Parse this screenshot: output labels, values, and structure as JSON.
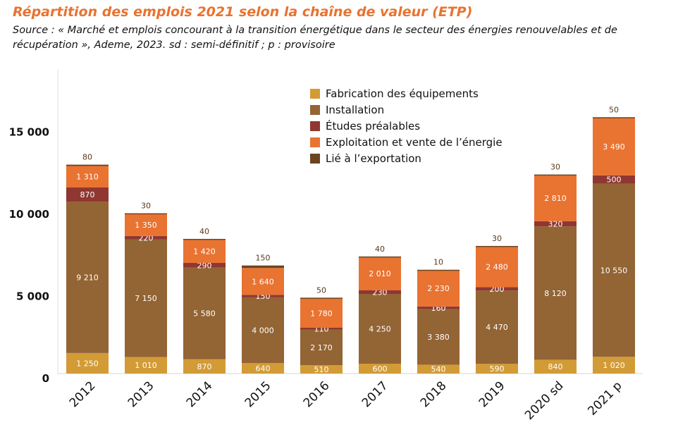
{
  "chart_data": {
    "type": "bar",
    "stacked": true,
    "title": "Répartition des emplois 2021 selon la chaîne de valeur (ETP)",
    "subtitle": "Source : « Marché et emplois concourant à la transition énergétique dans le secteur des énergies renouvelables et de récupération », Ademe, 2023. sd : semi-définitif ; p : provisoire",
    "categories": [
      "2012",
      "2013",
      "2014",
      "2015",
      "2016",
      "2017",
      "2018",
      "2019",
      "2020 sd",
      "2021 p"
    ],
    "ylim": [
      0,
      18500
    ],
    "yticks": [
      0,
      5000,
      10000,
      15000
    ],
    "ytick_labels": [
      "0",
      "5 000",
      "10 000",
      "15 000"
    ],
    "grid": false,
    "legend_position": "top-right",
    "series": [
      {
        "name": "Fabrication des équipements",
        "color": "#D39B36",
        "values": [
          1250,
          1010,
          870,
          640,
          510,
          600,
          540,
          590,
          840,
          1020
        ],
        "labels": [
          "1 250",
          "1 010",
          "870",
          "640",
          "510",
          "600",
          "540",
          "590",
          "840",
          "1 020"
        ]
      },
      {
        "name": "Installation",
        "color": "#936434",
        "values": [
          9210,
          7150,
          5580,
          4000,
          2170,
          4250,
          3380,
          4470,
          8120,
          10550
        ],
        "labels": [
          "9 210",
          "7 150",
          "5 580",
          "4 000",
          "2 170",
          "4 250",
          "3 380",
          "4 470",
          "8 120",
          "10 550"
        ]
      },
      {
        "name": "Études préalables",
        "color": "#8F3730",
        "values": [
          870,
          220,
          290,
          150,
          110,
          230,
          160,
          200,
          320,
          500
        ],
        "labels": [
          "870",
          "220",
          "290",
          "150",
          "110",
          "230",
          "160",
          "200",
          "320",
          "500"
        ]
      },
      {
        "name": "Exploitation et vente de l’énergie",
        "color": "#E97331",
        "values": [
          1310,
          1350,
          1420,
          1640,
          1780,
          2010,
          2230,
          2480,
          2810,
          3490
        ],
        "labels": [
          "1 310",
          "1 350",
          "1 420",
          "1 640",
          "1 780",
          "2 010",
          "2 230",
          "2 480",
          "2 810",
          "3 490"
        ]
      },
      {
        "name": "Lié à l’exportation",
        "color": "#6B4520",
        "values": [
          80,
          30,
          40,
          150,
          50,
          40,
          10,
          30,
          30,
          50
        ],
        "labels": [
          "80",
          "30",
          "40",
          "150",
          "50",
          "40",
          "10",
          "30",
          "30",
          "50"
        ]
      }
    ]
  }
}
